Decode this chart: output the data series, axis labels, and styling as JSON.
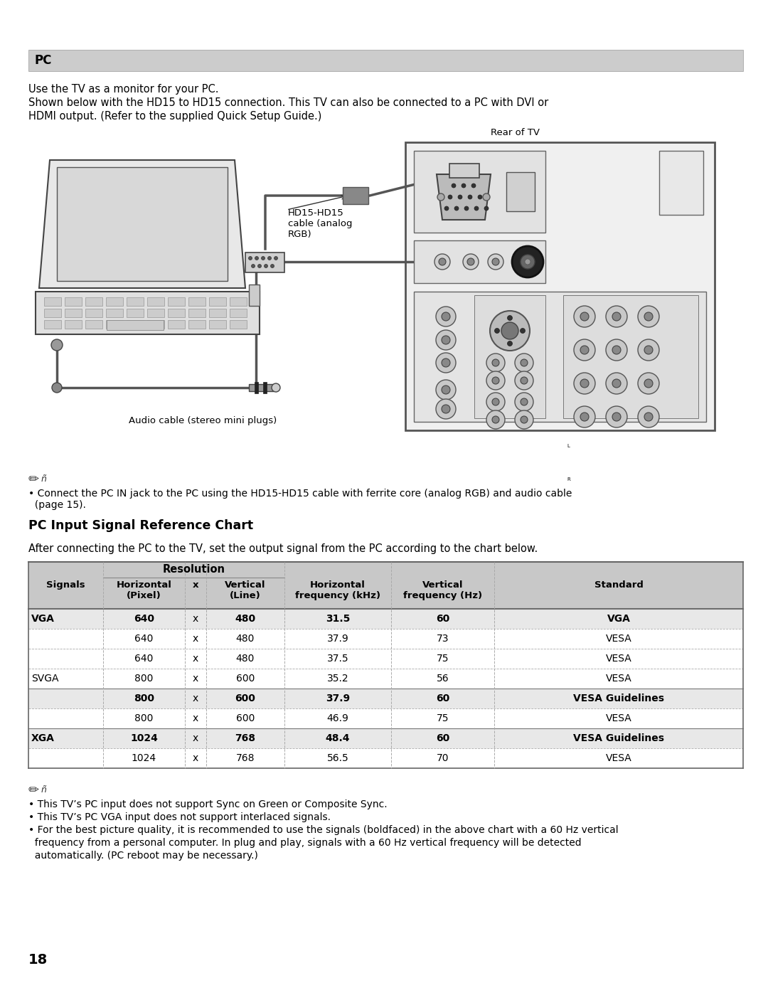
{
  "page_bg": "#ffffff",
  "page_number": "18",
  "section_header": "PC",
  "section_header_bg": "#cccccc",
  "intro_lines": [
    "Use the TV as a monitor for your PC.",
    "Shown below with the HD15 to HD15 connection. This TV can also be connected to a PC with DVI or",
    "HDMI output. (Refer to the supplied Quick Setup Guide.)"
  ],
  "diagram_label_rear": "Rear of TV",
  "diagram_label_hd15": "HD15-HD15\ncable (analog\nRGB)",
  "diagram_label_audio": "Audio cable (stereo mini plugs)",
  "note1_line1": "• Connect the PC IN jack to the PC using the HD15-HD15 cable with ferrite core (analog RGB) and audio cable",
  "note1_line2": "  (page 15).",
  "chart_title": "PC Input Signal Reference Chart",
  "chart_intro": "After connecting the PC to the TV, set the output signal from the PC according to the chart below.",
  "resolution_label": "Resolution",
  "table_rows": [
    {
      "signal": "VGA",
      "h": "640",
      "v": "480",
      "hf": "31.5",
      "vf": "60",
      "std": "VGA",
      "bold": true
    },
    {
      "signal": "",
      "h": "640",
      "v": "480",
      "hf": "37.9",
      "vf": "73",
      "std": "VESA",
      "bold": false
    },
    {
      "signal": "",
      "h": "640",
      "v": "480",
      "hf": "37.5",
      "vf": "75",
      "std": "VESA",
      "bold": false
    },
    {
      "signal": "SVGA",
      "h": "800",
      "v": "600",
      "hf": "35.2",
      "vf": "56",
      "std": "VESA",
      "bold": false
    },
    {
      "signal": "",
      "h": "800",
      "v": "600",
      "hf": "37.9",
      "vf": "60",
      "std": "VESA Guidelines",
      "bold": true
    },
    {
      "signal": "",
      "h": "800",
      "v": "600",
      "hf": "46.9",
      "vf": "75",
      "std": "VESA",
      "bold": false
    },
    {
      "signal": "XGA",
      "h": "1024",
      "v": "768",
      "hf": "48.4",
      "vf": "60",
      "std": "VESA Guidelines",
      "bold": true
    },
    {
      "signal": "",
      "h": "1024",
      "v": "768",
      "hf": "56.5",
      "vf": "70",
      "std": "VESA",
      "bold": false
    }
  ],
  "notes_bottom": [
    "• This TV’s PC input does not support Sync on Green or Composite Sync.",
    "• This TV’s PC VGA input does not support interlaced signals.",
    "• For the best picture quality, it is recommended to use the signals (boldfaced) in the above chart with a 60 Hz vertical",
    "  frequency from a personal computer. In plug and play, signals with a 60 Hz vertical frequency will be detected",
    "  automatically. (PC reboot may be necessary.)"
  ],
  "header_row_bg": "#c8c8c8",
  "table_line_color": "#888888"
}
